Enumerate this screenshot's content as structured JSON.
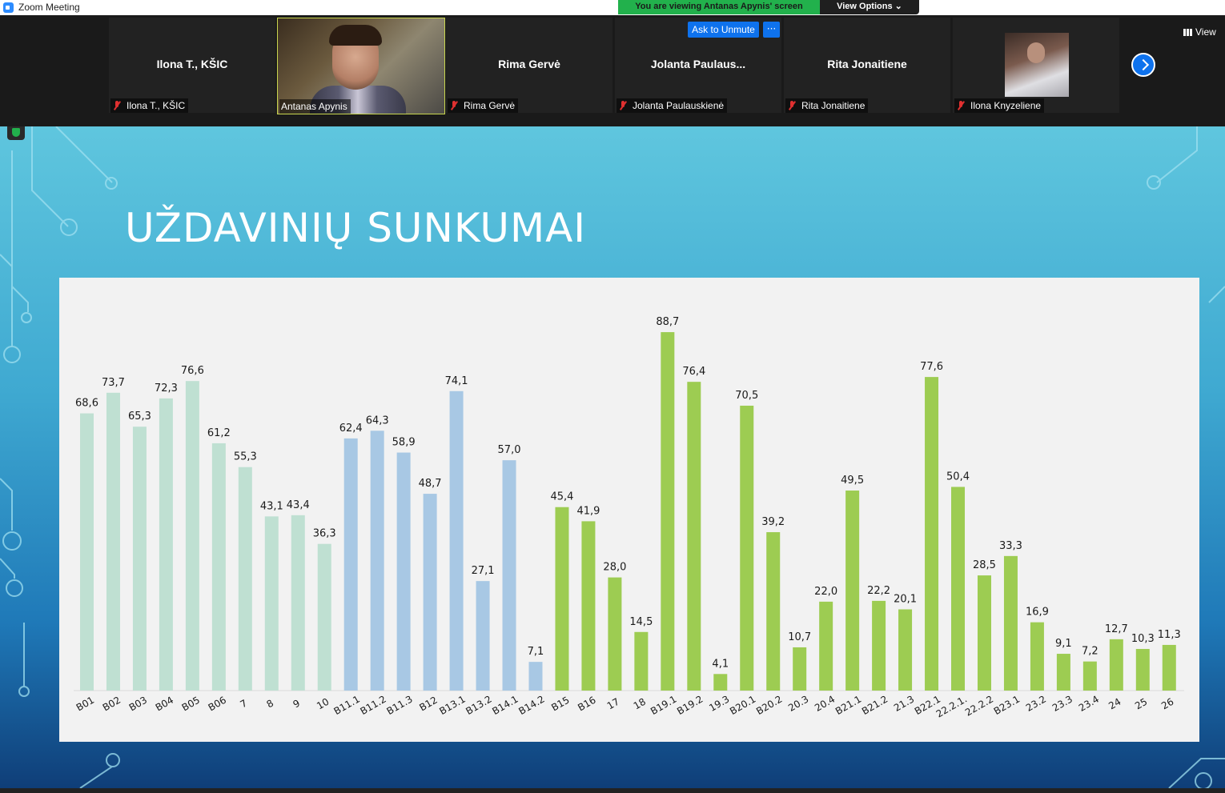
{
  "window": {
    "title": "Zoom Meeting"
  },
  "banner": {
    "viewing_text": "You are viewing Antanas Apynis' screen",
    "view_options_label": "View Options"
  },
  "participants": [
    {
      "name": "Ilona T., KŠIC",
      "label": "Ilona T., KŠIC",
      "muted": true,
      "video": false
    },
    {
      "name": "",
      "label": "Antanas Apynis",
      "muted": false,
      "video": true
    },
    {
      "name": "Rima Gervė",
      "label": "Rima Gervė",
      "muted": true,
      "video": false
    },
    {
      "name": "Jolanta  Paulaus...",
      "label": "Jolanta Paulauskienė",
      "muted": true,
      "video": false
    },
    {
      "name": "Rita Jonaitiene",
      "label": "Rita Jonaitiene",
      "muted": true,
      "video": false
    },
    {
      "name": "",
      "label": "Ilona Knyzeliene",
      "muted": true,
      "video": "avatar"
    }
  ],
  "controls": {
    "ask_to_unmute": "Ask to Unmute",
    "more": "···",
    "view_label": "View"
  },
  "slide": {
    "title": "UŽDAVINIŲ SUNKUMAI"
  },
  "colors": {
    "group1": "#bfe0d2",
    "group2": "#a8c8e4",
    "group3": "#9dcc52",
    "zoom_blue": "#0e72ed",
    "banner_green": "#22b14c"
  },
  "chart_data": {
    "type": "bar",
    "title": "",
    "xlabel": "",
    "ylabel": "",
    "ylim": [
      0,
      100
    ],
    "grid": false,
    "categories": [
      "B01",
      "B02",
      "B03",
      "B04",
      "B05",
      "B06",
      "7",
      "8",
      "9",
      "10",
      "B11.1",
      "B11.2",
      "B11.3",
      "B12",
      "B13.1",
      "B13.2",
      "B14.1",
      "B14.2",
      "B15",
      "B16",
      "17",
      "18",
      "B19.1",
      "B19.2",
      "19.3",
      "B20.1",
      "B20.2",
      "20.3",
      "20.4",
      "B21.1",
      "B21.2",
      "21.3",
      "B22.1",
      "22.2.1.",
      "22.2.2",
      "B23.1",
      "23.2",
      "23.3",
      "23.4",
      "24",
      "25",
      "26"
    ],
    "values": [
      68.6,
      73.7,
      65.3,
      72.3,
      76.6,
      61.2,
      55.3,
      43.1,
      43.4,
      36.3,
      62.4,
      64.3,
      58.9,
      48.7,
      74.1,
      27.1,
      57.0,
      7.1,
      45.4,
      41.9,
      28.0,
      14.5,
      88.7,
      76.4,
      4.1,
      70.5,
      39.2,
      10.7,
      22.0,
      49.5,
      22.2,
      20.1,
      77.6,
      50.4,
      28.5,
      33.3,
      16.9,
      9.1,
      7.2,
      12.7,
      10.3,
      11.3
    ],
    "value_labels": [
      "68,6",
      "73,7",
      "65,3",
      "72,3",
      "76,6",
      "61,2",
      "55,3",
      "43,1",
      "43,4",
      "36,3",
      "62,4",
      "64,3",
      "58,9",
      "48,7",
      "74,1",
      "27,1",
      "57,0",
      "7,1",
      "45,4",
      "41,9",
      "28,0",
      "14,5",
      "88,7",
      "76,4",
      "4,1",
      "70,5",
      "39,2",
      "10,7",
      "22,0",
      "49,5",
      "22,2",
      "20,1",
      "77,6",
      "50,4",
      "28,5",
      "33,3",
      "16,9",
      "9,1",
      "7,2",
      "12,7",
      "10,3",
      "11,3"
    ],
    "bar_groups": [
      0,
      0,
      0,
      0,
      0,
      0,
      0,
      0,
      0,
      0,
      1,
      1,
      1,
      1,
      1,
      1,
      1,
      1,
      2,
      2,
      2,
      2,
      2,
      2,
      2,
      2,
      2,
      2,
      2,
      2,
      2,
      2,
      2,
      2,
      2,
      2,
      2,
      2,
      2,
      2,
      2,
      2
    ]
  }
}
